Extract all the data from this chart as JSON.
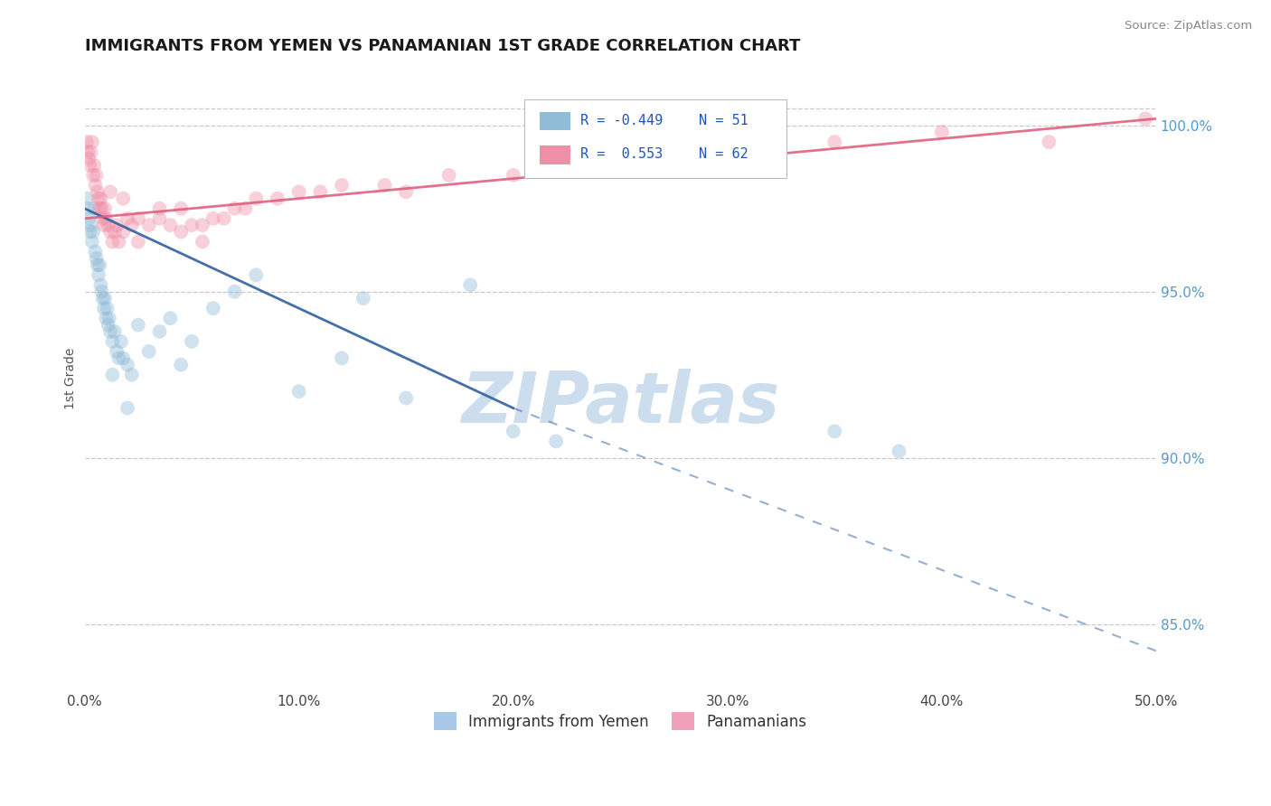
{
  "title": "IMMIGRANTS FROM YEMEN VS PANAMANIAN 1ST GRADE CORRELATION CHART",
  "source": "Source: ZipAtlas.com",
  "ylabel": "1st Grade",
  "xlim": [
    0.0,
    50.0
  ],
  "ylim": [
    83.0,
    101.8
  ],
  "yticks": [
    85.0,
    90.0,
    95.0,
    100.0
  ],
  "ytick_labels": [
    "85.0%",
    "90.0%",
    "95.0%",
    "100.0%"
  ],
  "xticks": [
    0.0,
    10.0,
    20.0,
    30.0,
    40.0,
    50.0
  ],
  "xtick_labels": [
    "0.0%",
    "10.0%",
    "20.0%",
    "30.0%",
    "40.0%",
    "50.0%"
  ],
  "legend_entries": [
    {
      "label": "Immigrants from Yemen",
      "color": "#a8c8e8"
    },
    {
      "label": "Panamanians",
      "color": "#f0a0b8"
    }
  ],
  "legend_r_entries": [
    {
      "r_label": "R = -0.449",
      "n_label": "N = 51",
      "color": "#a8c8e8"
    },
    {
      "r_label": "R =  0.553",
      "n_label": "N = 62",
      "color": "#f0a0b8"
    }
  ],
  "blue_scatter_x": [
    0.1,
    0.15,
    0.2,
    0.25,
    0.3,
    0.35,
    0.4,
    0.45,
    0.5,
    0.55,
    0.6,
    0.65,
    0.7,
    0.75,
    0.8,
    0.85,
    0.9,
    0.95,
    1.0,
    1.05,
    1.1,
    1.15,
    1.2,
    1.3,
    1.4,
    1.5,
    1.6,
    1.7,
    1.8,
    2.0,
    2.2,
    2.5,
    3.0,
    3.5,
    4.0,
    4.5,
    5.0,
    6.0,
    7.0,
    8.0,
    10.0,
    12.0,
    13.0,
    15.0,
    18.0,
    20.0,
    22.0,
    35.0,
    38.0,
    2.0,
    1.3
  ],
  "blue_scatter_y": [
    97.8,
    97.5,
    97.2,
    96.8,
    97.0,
    96.5,
    96.8,
    97.5,
    96.2,
    96.0,
    95.8,
    95.5,
    95.8,
    95.2,
    95.0,
    94.8,
    94.5,
    94.8,
    94.2,
    94.5,
    94.0,
    94.2,
    93.8,
    93.5,
    93.8,
    93.2,
    93.0,
    93.5,
    93.0,
    92.8,
    92.5,
    94.0,
    93.2,
    93.8,
    94.2,
    92.8,
    93.5,
    94.5,
    95.0,
    95.5,
    92.0,
    93.0,
    94.8,
    91.8,
    95.2,
    90.8,
    90.5,
    90.8,
    90.2,
    91.5,
    92.5
  ],
  "pink_scatter_x": [
    0.1,
    0.15,
    0.2,
    0.25,
    0.3,
    0.35,
    0.4,
    0.45,
    0.5,
    0.55,
    0.6,
    0.65,
    0.7,
    0.75,
    0.8,
    0.85,
    0.9,
    0.95,
    1.0,
    1.1,
    1.2,
    1.3,
    1.4,
    1.5,
    1.6,
    1.8,
    2.0,
    2.2,
    2.5,
    3.0,
    3.5,
    4.0,
    4.5,
    5.0,
    5.5,
    6.0,
    7.0,
    8.0,
    10.0,
    12.0,
    15.0,
    20.0,
    25.0,
    30.0,
    35.0,
    40.0,
    45.0,
    49.5,
    1.2,
    1.8,
    2.5,
    3.5,
    4.5,
    5.5,
    6.5,
    7.5,
    9.0,
    11.0,
    14.0,
    17.0,
    22.0,
    28.0
  ],
  "pink_scatter_y": [
    99.5,
    99.2,
    99.0,
    98.8,
    99.2,
    99.5,
    98.5,
    98.8,
    98.2,
    98.5,
    98.0,
    97.8,
    97.5,
    97.8,
    97.5,
    97.2,
    97.0,
    97.5,
    97.2,
    97.0,
    96.8,
    96.5,
    96.8,
    97.0,
    96.5,
    96.8,
    97.2,
    97.0,
    96.5,
    97.0,
    97.2,
    97.0,
    97.5,
    97.0,
    96.5,
    97.2,
    97.5,
    97.8,
    98.0,
    98.2,
    98.0,
    98.5,
    99.0,
    99.2,
    99.5,
    99.8,
    99.5,
    100.2,
    98.0,
    97.8,
    97.2,
    97.5,
    96.8,
    97.0,
    97.2,
    97.5,
    97.8,
    98.0,
    98.2,
    98.5,
    99.0,
    99.2
  ],
  "blue_solid_line_x": [
    0.0,
    20.0
  ],
  "blue_solid_line_y": [
    97.5,
    91.5
  ],
  "blue_dash_line_x": [
    20.0,
    50.0
  ],
  "blue_dash_line_y": [
    91.5,
    84.2
  ],
  "pink_solid_line_x": [
    0.0,
    50.0
  ],
  "pink_solid_line_y": [
    97.2,
    100.2
  ],
  "scatter_size": 130,
  "scatter_alpha": 0.42,
  "blue_color": "#90bcd8",
  "blue_line_color": "#3060a0",
  "pink_color": "#f090a8",
  "pink_line_color": "#e05878",
  "grid_color": "#c8c8c8",
  "background_color": "#ffffff",
  "watermark": "ZIPatlas",
  "watermark_color": "#ccdded"
}
